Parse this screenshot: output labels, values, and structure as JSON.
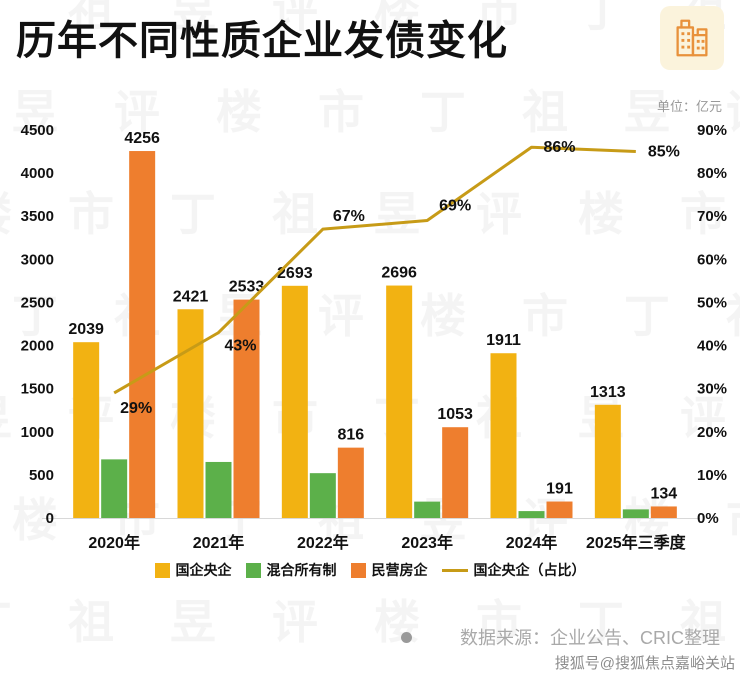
{
  "header": {
    "title": "历年不同性质企业发债变化",
    "unit_label": "单位：亿元",
    "logo_icon": "buildings-icon"
  },
  "chart_data": {
    "type": "bar+line",
    "title": "历年不同性质企业发债变化",
    "unit": "亿元",
    "categories": [
      "2020年",
      "2021年",
      "2022年",
      "2023年",
      "2024年",
      "2025年三季度"
    ],
    "series": [
      {
        "name": "国企央企",
        "type": "bar",
        "color": "#F2B212",
        "values": [
          2039,
          2421,
          2693,
          2696,
          1911,
          1313
        ],
        "labels_visible": true
      },
      {
        "name": "混合所有制",
        "type": "bar",
        "color": "#5CB04A",
        "values": [
          680,
          650,
          520,
          190,
          80,
          100
        ],
        "labels_visible": false
      },
      {
        "name": "民营房企",
        "type": "bar",
        "color": "#EE7E2E",
        "values": [
          4256,
          2533,
          816,
          1053,
          191,
          134
        ],
        "labels_visible": true
      },
      {
        "name": "国企央企（占比）",
        "type": "line",
        "color": "#C79B17",
        "values": [
          29,
          43,
          67,
          69,
          86,
          85
        ],
        "labels": [
          "29%",
          "43%",
          "67%",
          "69%",
          "86%",
          "85%"
        ]
      }
    ],
    "left_axis": {
      "min": 0,
      "max": 4500,
      "step": 500,
      "ticks": [
        "0",
        "500",
        "1000",
        "1500",
        "2000",
        "2500",
        "3000",
        "3500",
        "4000",
        "4500"
      ]
    },
    "right_axis": {
      "min": 0,
      "max": 90,
      "step": 10,
      "ticks": [
        "0%",
        "10%",
        "20%",
        "30%",
        "40%",
        "50%",
        "60%",
        "70%",
        "80%",
        "90%"
      ]
    },
    "legend_position": "bottom",
    "grid": false
  },
  "footer": {
    "source_text": "数据来源：企业公告、CRIC整理",
    "sohu_text": "搜狐号@搜狐焦点嘉峪关站"
  },
  "watermark": {
    "text": "丁祖昱评楼市"
  },
  "colors": {
    "bar_soe": "#F2B212",
    "bar_mixed": "#5CB04A",
    "bar_private": "#EE7E2E",
    "line_share": "#C79B17",
    "logo_bg": "#FBF3DC",
    "logo_stroke": "#E8913B"
  }
}
